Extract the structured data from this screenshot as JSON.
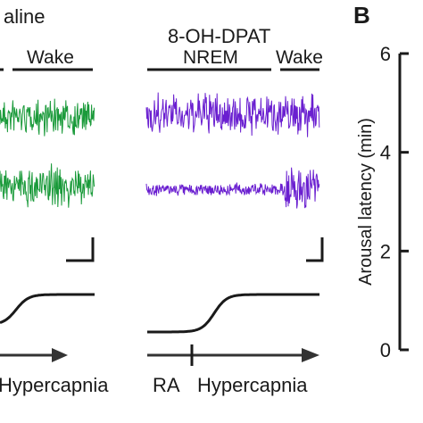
{
  "figure": {
    "panel_label": "B",
    "left_panel": {
      "condition_label": "aline",
      "state_labels": [
        "Wake"
      ],
      "stimulus_label": "Hypercapnia",
      "trace_color": "#1a9a3a"
    },
    "middle_panel": {
      "condition_label": "8-OH-DPAT",
      "state_labels": [
        "NREM",
        "Wake"
      ],
      "baseline_label": "RA",
      "stimulus_label": "Hypercapnia",
      "trace_color": "#6a1fd0"
    },
    "axis_color": "#1a1a1a"
  },
  "chart_data": {
    "type": "bar",
    "ylabel": "Arousal latency (min)",
    "ylim": [
      0,
      6
    ],
    "yticks": [
      "0",
      "2",
      "4",
      "6"
    ],
    "categories": [],
    "values": []
  }
}
